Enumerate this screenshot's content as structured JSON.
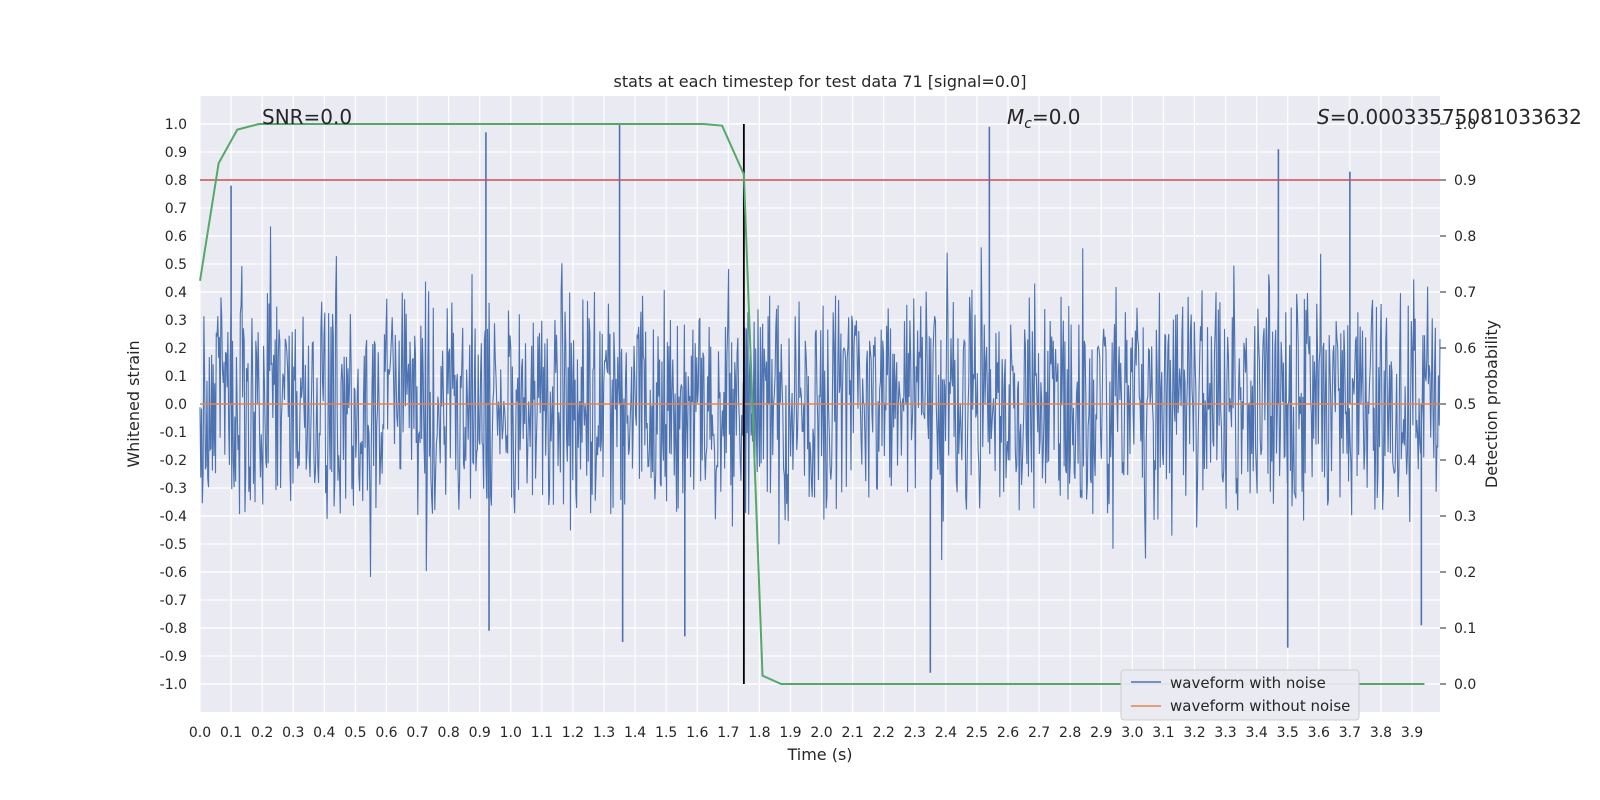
{
  "chart_data": {
    "type": "line",
    "title": "stats at each timestep for test data 71 [signal=0.0]",
    "xlabel": "Time (s)",
    "ylabel": "Whitened strain",
    "y2label": "Detection probability",
    "xlim": [
      0.0,
      3.99
    ],
    "ylim": [
      -1.1,
      1.1
    ],
    "y2lim": [
      -0.05,
      1.05
    ],
    "grid": true,
    "x_ticks": [
      "0.0",
      "0.1",
      "0.2",
      "0.3",
      "0.4",
      "0.5",
      "0.6",
      "0.7",
      "0.8",
      "0.9",
      "1.0",
      "1.1",
      "1.2",
      "1.3",
      "1.4",
      "1.5",
      "1.6",
      "1.7",
      "1.8",
      "1.9",
      "2.0",
      "2.1",
      "2.2",
      "2.3",
      "2.4",
      "2.5",
      "2.6",
      "2.7",
      "2.8",
      "2.9",
      "3.0",
      "3.1",
      "3.2",
      "3.3",
      "3.4",
      "3.5",
      "3.6",
      "3.7",
      "3.8",
      "3.9"
    ],
    "y_ticks": [
      "1.0",
      "0.9",
      "0.8",
      "0.7",
      "0.6",
      "0.5",
      "0.4",
      "0.3",
      "0.2",
      "0.1",
      "0.0",
      "-0.1",
      "-0.2",
      "-0.3",
      "-0.4",
      "-0.5",
      "-0.6",
      "-0.7",
      "-0.8",
      "-0.9",
      "-1.0"
    ],
    "y2_ticks": [
      "1.0",
      "0.9",
      "0.8",
      "0.7",
      "0.6",
      "0.5",
      "0.4",
      "0.3",
      "0.2",
      "0.1",
      "0.0"
    ],
    "annotations": {
      "snr": "SNR=0.0",
      "mc_symbol": "M",
      "mc_sub": "c",
      "mc_value": "=0.0",
      "s_symbol": "S",
      "s_value": "=0.00033575081033632"
    },
    "series": [
      {
        "name": "waveform with noise",
        "color": "#4c72b0",
        "axis": "left",
        "description": "whitened strain noise, approx. uniform amplitude about 0.45 with spikes",
        "amplitude": 0.45,
        "peaks": [
          [
            0.1,
            0.78
          ],
          [
            0.92,
            0.97
          ],
          [
            0.93,
            -0.81
          ],
          [
            1.35,
            1.0
          ],
          [
            1.36,
            -0.85
          ],
          [
            1.56,
            -0.83
          ],
          [
            2.35,
            -0.96
          ],
          [
            2.54,
            0.99
          ],
          [
            3.47,
            0.91
          ],
          [
            3.5,
            -0.87
          ],
          [
            3.7,
            0.83
          ],
          [
            3.93,
            -0.79
          ]
        ]
      },
      {
        "name": "waveform without noise",
        "color": "#dd8452",
        "axis": "left",
        "x": [
          0.0,
          3.99
        ],
        "y": [
          0.0,
          0.0
        ]
      },
      {
        "name": "detection probability",
        "color": "#55a868",
        "axis": "right",
        "x": [
          0.0,
          0.06,
          0.12,
          0.19,
          0.25,
          0.5,
          1.0,
          1.5,
          1.62,
          1.68,
          1.75,
          1.81,
          1.87,
          1.94,
          2.5,
          3.0,
          3.5,
          3.94
        ],
        "y": [
          0.72,
          0.93,
          0.99,
          1.0,
          1.0,
          1.0,
          1.0,
          1.0,
          1.0,
          0.997,
          0.91,
          0.015,
          0.0,
          0.0,
          0.0,
          0.0,
          0.0,
          0.0
        ]
      }
    ],
    "threshold": {
      "color": "#c44e52",
      "axis": "right",
      "value": 0.9
    },
    "marker_line": {
      "color": "#000000",
      "x": 1.75,
      "ymin": 0.0,
      "ymax": 1.0
    },
    "legend": {
      "position": "lower-right",
      "entries": [
        {
          "label": "waveform with noise",
          "color": "#4c72b0"
        },
        {
          "label": "waveform without noise",
          "color": "#dd8452"
        }
      ]
    }
  }
}
